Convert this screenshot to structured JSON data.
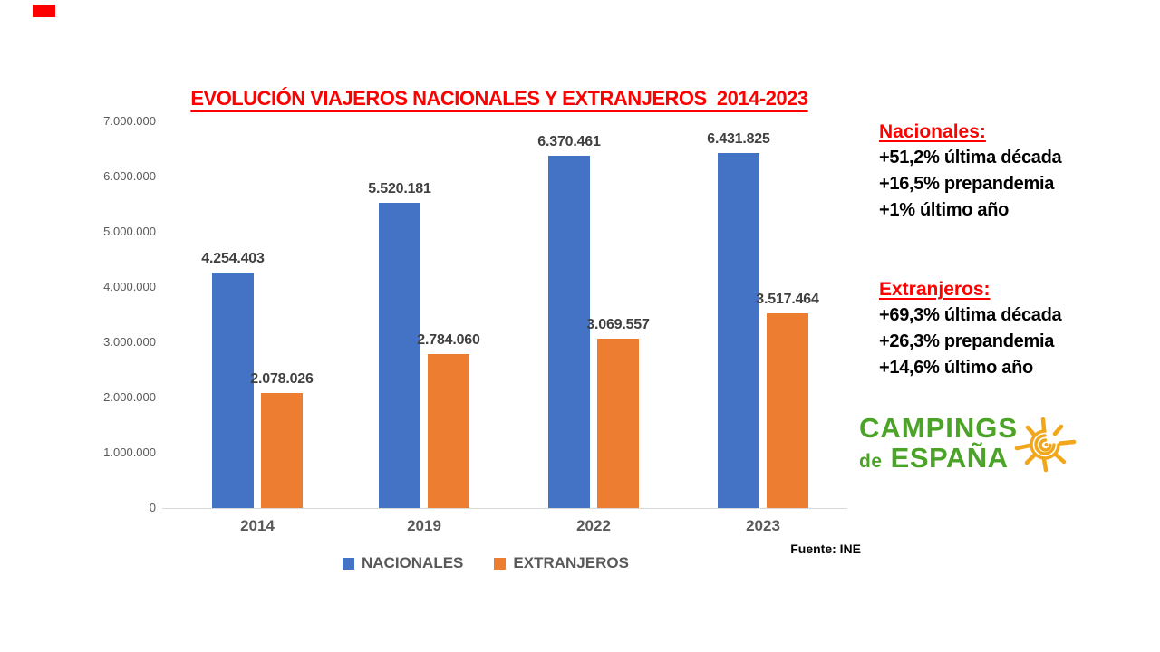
{
  "title_block": {
    "title": "EVOLUCIÓN VIAJEROS NACIONALES Y EXTRANJEROS  2014-2023"
  },
  "chart_data": {
    "type": "bar",
    "title": "EVOLUCIÓN VIAJEROS NACIONALES Y EXTRANJEROS  2014-2023",
    "categories": [
      "2014",
      "2019",
      "2022",
      "2023"
    ],
    "series": [
      {
        "name": "NACIONALES",
        "color": "#4472C4",
        "values": [
          4254403,
          5520181,
          6370461,
          6431825
        ],
        "labels": [
          "4.254.403",
          "5.520.181",
          "6.370.461",
          "6.431.825"
        ]
      },
      {
        "name": "EXTRANJEROS",
        "color": "#ED7D31",
        "values": [
          2078026,
          2784060,
          3069557,
          3517464
        ],
        "labels": [
          "2.078.026",
          "2.784.060",
          "3.069.557",
          "3.517.464"
        ]
      }
    ],
    "y_axis": {
      "min": 0,
      "max": 7000000,
      "step": 1000000,
      "tick_labels": [
        "7.000.000",
        "6.000.000",
        "5.000.000",
        "4.000.000",
        "3.000.000",
        "2.000.000",
        "1.000.000",
        "0"
      ]
    },
    "grid": false,
    "legend_position": "bottom",
    "source_note": "Fuente: INE"
  },
  "annotations": {
    "nacionales": {
      "heading": "Nacionales:",
      "lines": [
        "+51,2% última década",
        "+16,5% prepandemia",
        "+1% último año"
      ]
    },
    "extranjeros": {
      "heading": "Extranjeros:",
      "lines": [
        "+69,3% última década",
        "+26,3% prepandemia",
        "+14,6% último año"
      ]
    }
  },
  "logo": {
    "line1": "CAMPINGS",
    "line2_small": "de",
    "line2": "ESPAÑA",
    "icon": "spiral-sun-icon"
  },
  "colors": {
    "title_red": "#FF0000",
    "nacionales_blue": "#4472C4",
    "extranjeros_orange": "#ED7D31",
    "data_label_gray": "#404040",
    "axis_gray": "#595959",
    "axis_line": "#D9D9D9",
    "logo_green": "#4BA327",
    "sun_yellow": "#F2A71B",
    "corner_mark_red": "#FF0000"
  }
}
